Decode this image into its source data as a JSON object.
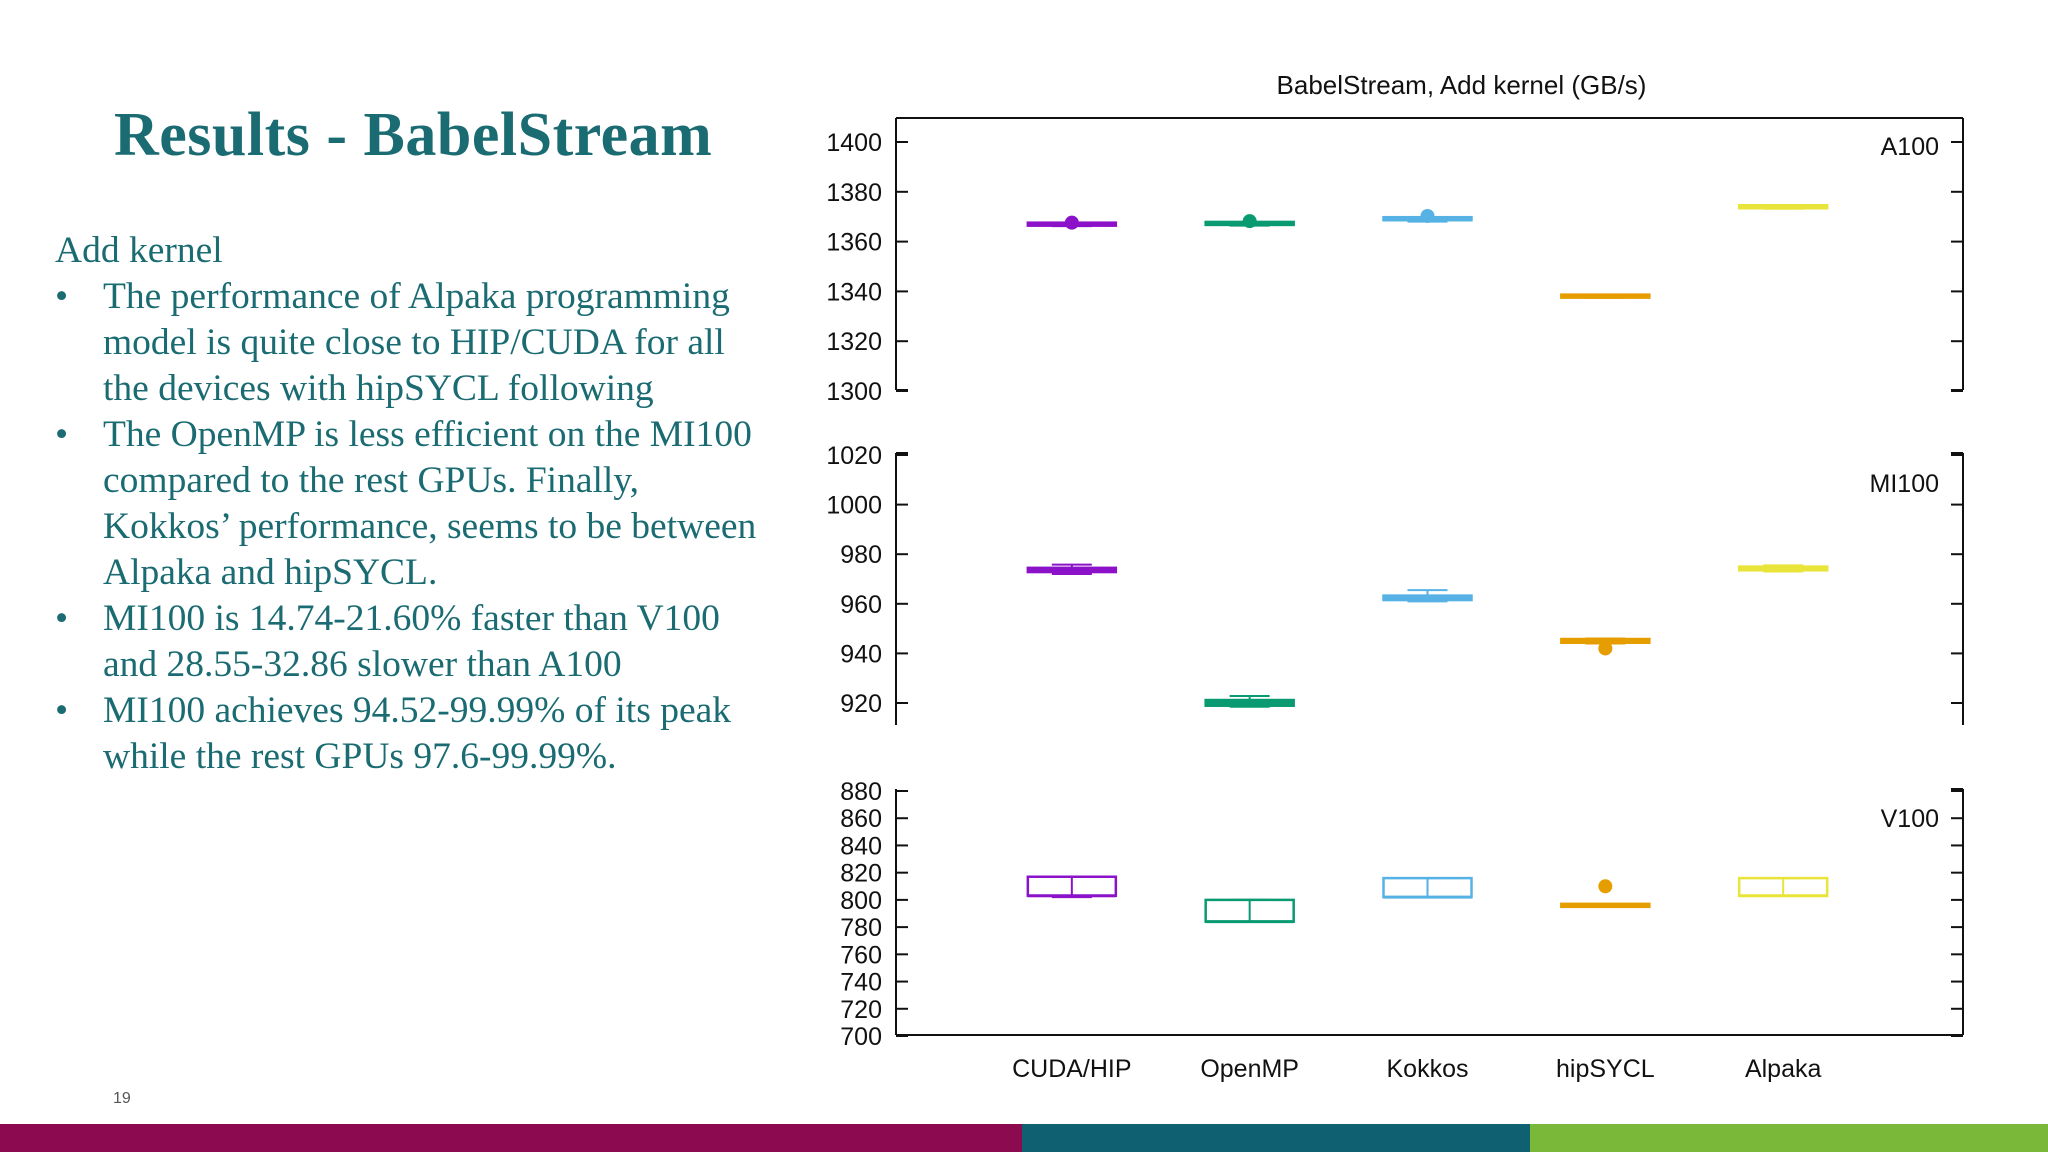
{
  "slide": {
    "title": "Results - BabelStream",
    "page_number": "19",
    "intro": "Add kernel",
    "bullet_symbol": "•",
    "bullets": [
      [
        "The performance of Alpaka programming",
        "model is quite close to HIP/CUDA for all",
        "the devices with hipSYCL following"
      ],
      [
        "The OpenMP is less efficient on the MI100",
        "compared to the rest GPUs. Finally,",
        "Kokkos’ performance, seems to be between",
        "Alpaka and hipSYCL."
      ],
      [
        "MI100 is 14.74-21.60% faster than V100",
        "and 28.55-32.86 slower than A100"
      ],
      [
        "MI100 achieves 94.52-99.99% of its peak",
        "while the rest GPUs 97.6-99.99%."
      ]
    ],
    "text_color": "#1a6b72",
    "footer_colors": [
      "#8b0a50",
      "#0f6070",
      "#7ab83a"
    ]
  },
  "chart_data": {
    "type": "box",
    "title": "BabelStream, Add kernel (GB/s)",
    "categories": [
      "CUDA/HIP",
      "OpenMP",
      "Kokkos",
      "hipSYCL",
      "Alpaka"
    ],
    "colors": [
      "#8b12c8",
      "#0a9a72",
      "#56b2e4",
      "#e69d00",
      "#e8e43a"
    ],
    "panels": [
      {
        "label": "A100",
        "ylim": [
          1300,
          1400
        ],
        "yticks": [
          1300,
          1320,
          1340,
          1360,
          1380,
          1400
        ],
        "boxes": [
          {
            "q1": 1366.3,
            "median": 1366.7,
            "q3": 1367.0,
            "whisker_low": 1366.2,
            "whisker_high": 1367.1,
            "outliers": [
              1367.6
            ]
          },
          {
            "q1": 1366.5,
            "median": 1367.0,
            "q3": 1367.3,
            "whisker_low": 1366.4,
            "whisker_high": 1367.4,
            "outliers": [
              1368.2
            ]
          },
          {
            "q1": 1368.2,
            "median": 1368.7,
            "q3": 1369.2,
            "whisker_low": 1368.0,
            "whisker_high": 1369.3,
            "outliers": [
              1370.3
            ]
          },
          {
            "q1": 1337.5,
            "median": 1337.8,
            "q3": 1338.1,
            "whisker_low": 1337.4,
            "whisker_high": 1338.2,
            "outliers": []
          },
          {
            "q1": 1373.3,
            "median": 1373.6,
            "q3": 1374.0,
            "whisker_low": 1373.2,
            "whisker_high": 1374.1,
            "outliers": []
          }
        ]
      },
      {
        "label": "MI100",
        "ylim": [
          910,
          1020
        ],
        "yticks": [
          920,
          940,
          960,
          980,
          1000,
          1020
        ],
        "boxes": [
          {
            "q1": 972.8,
            "median": 973.5,
            "q3": 974.5,
            "whisker_low": 972.0,
            "whisker_high": 975.8,
            "outliers": []
          },
          {
            "q1": 918.9,
            "median": 920.0,
            "q3": 921.2,
            "whisker_low": 918.5,
            "whisker_high": 922.8,
            "outliers": []
          },
          {
            "q1": 961.5,
            "median": 962.5,
            "q3": 963.3,
            "whisker_low": 961.0,
            "whisker_high": 965.5,
            "outliers": []
          },
          {
            "q1": 944.3,
            "median": 945.0,
            "q3": 945.8,
            "whisker_low": 944.0,
            "whisker_high": 946.0,
            "outliers": [
              942.0
            ]
          },
          {
            "q1": 973.5,
            "median": 974.3,
            "q3": 975.0,
            "whisker_low": 973.0,
            "whisker_high": 975.5,
            "outliers": []
          }
        ]
      },
      {
        "label": "V100",
        "ylim": [
          700,
          880
        ],
        "yticks": [
          700,
          720,
          740,
          760,
          780,
          800,
          820,
          840,
          860,
          880
        ],
        "boxes": [
          {
            "q1": 803.0,
            "median": 803.0,
            "q3": 817.0,
            "whisker_low": 802.0,
            "whisker_high": 817.0,
            "outliers": []
          },
          {
            "q1": 784.0,
            "median": 784.0,
            "q3": 800.0,
            "whisker_low": 784.0,
            "whisker_high": 800.0,
            "outliers": []
          },
          {
            "q1": 802.0,
            "median": 802.0,
            "q3": 816.0,
            "whisker_low": 802.0,
            "whisker_high": 816.0,
            "outliers": []
          },
          {
            "q1": 795.0,
            "median": 795.5,
            "q3": 796.0,
            "whisker_low": 795.0,
            "whisker_high": 796.0,
            "outliers": [
              810.0
            ]
          },
          {
            "q1": 803.0,
            "median": 803.0,
            "q3": 816.0,
            "whisker_low": 803.0,
            "whisker_high": 816.0,
            "outliers": []
          }
        ]
      }
    ]
  }
}
